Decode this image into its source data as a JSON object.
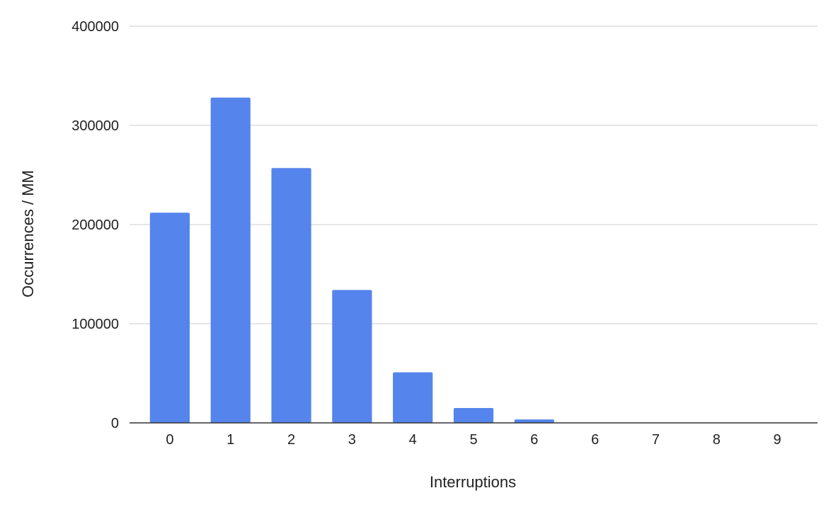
{
  "chart_data": {
    "type": "bar",
    "title": "",
    "xlabel": "Interruptions",
    "ylabel": "Occurrences / MM",
    "categories": [
      "0",
      "1",
      "2",
      "3",
      "4",
      "5",
      "6",
      "6",
      "7",
      "8",
      "9"
    ],
    "series": [
      {
        "values": [
          212000,
          328000,
          257000,
          134000,
          51000,
          15000,
          3500,
          0,
          0,
          0,
          0
        ]
      }
    ],
    "ylim": [
      0,
      400000
    ],
    "yticks": [
      "0",
      "100000",
      "200000",
      "300000",
      "400000"
    ],
    "grid": true,
    "legend": "none",
    "colors": {
      "bar": "#5585ec",
      "grid": "#cccccc",
      "axis": "#333333"
    }
  }
}
